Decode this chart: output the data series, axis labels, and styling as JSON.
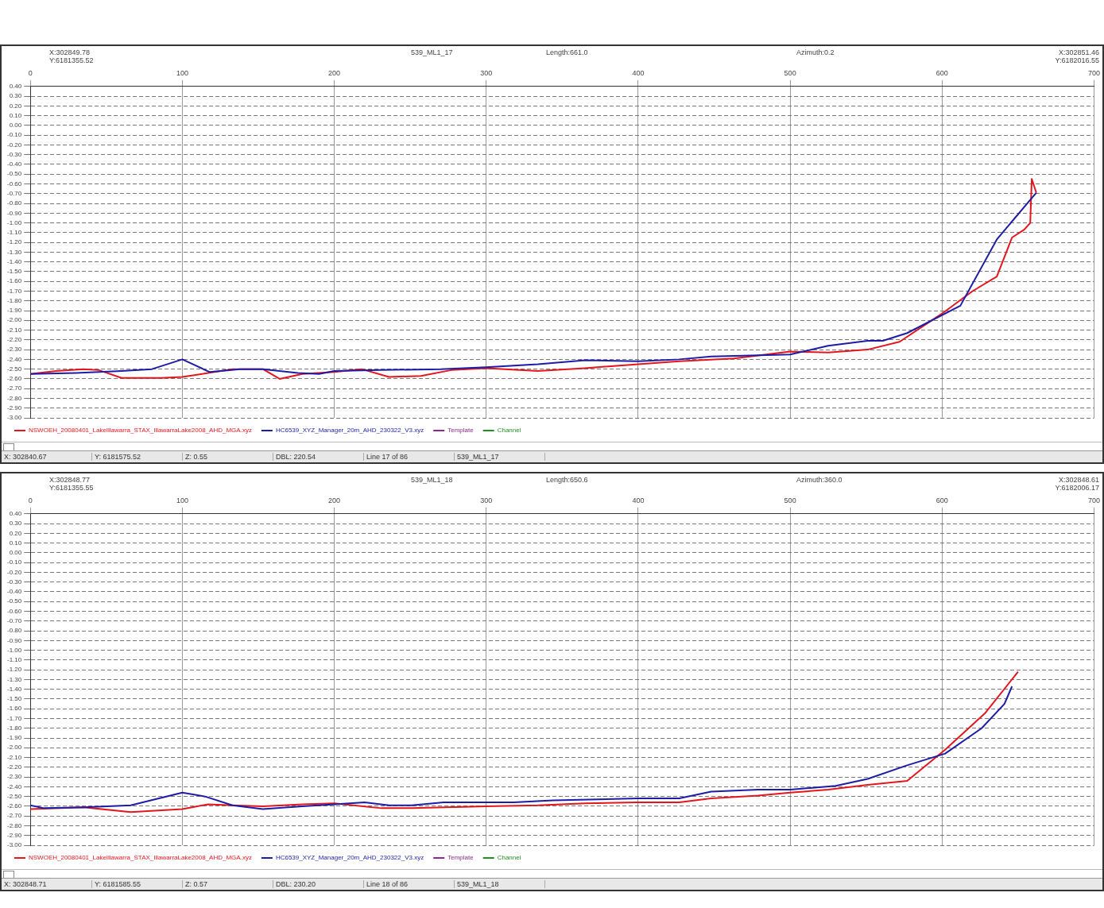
{
  "chart_data": [
    {
      "type": "line",
      "title": "539_ML1_17",
      "annotations": [
        "X:302849.78\nY:6181355.52",
        "Length:661.0",
        "Azimuth:0.2",
        "X:302851.46\nY:6182016.55",
        "X: 302840.67",
        "Y: 6181575.52",
        "Z: 0.55",
        "DBL: 220.54",
        "Line 17 of 86",
        "539_ML1_17"
      ],
      "series": [
        {
          "name": "NSWOEH_20080401_LakeIllawarra_STAX_IllawarraLake2008_AHD_MGA.xyz",
          "color": "#e3161d",
          "x": [
            0,
            17,
            35,
            45,
            60,
            86,
            100,
            117,
            133,
            153,
            164,
            179,
            200,
            218,
            236,
            257,
            277,
            300,
            334,
            365,
            400,
            427,
            463,
            500,
            525,
            551,
            572,
            600,
            620,
            636,
            646,
            654,
            658,
            659,
            662
          ],
          "values": [
            -2.55,
            -2.52,
            -2.5,
            -2.51,
            -2.59,
            -2.59,
            -2.58,
            -2.54,
            -2.5,
            -2.5,
            -2.6,
            -2.55,
            -2.53,
            -2.5,
            -2.58,
            -2.57,
            -2.51,
            -2.49,
            -2.52,
            -2.49,
            -2.45,
            -2.42,
            -2.39,
            -2.32,
            -2.33,
            -2.3,
            -2.22,
            -1.93,
            -1.7,
            -1.55,
            -1.15,
            -1.07,
            -1.0,
            -0.55,
            -0.69
          ]
        },
        {
          "name": "HC6539_XYZ_Manager_20m_AHD_230322_V3.xyz",
          "color": "#1c1ca6",
          "x": [
            0,
            30,
            60,
            80,
            100,
            118,
            138,
            153,
            176,
            190,
            200,
            230,
            270,
            300,
            334,
            365,
            400,
            427,
            448,
            500,
            525,
            551,
            561,
            577,
            612,
            636,
            662
          ],
          "values": [
            -2.55,
            -2.54,
            -2.52,
            -2.5,
            -2.4,
            -2.53,
            -2.5,
            -2.5,
            -2.54,
            -2.55,
            -2.52,
            -2.51,
            -2.5,
            -2.48,
            -2.45,
            -2.41,
            -2.42,
            -2.4,
            -2.37,
            -2.35,
            -2.26,
            -2.21,
            -2.21,
            -2.13,
            -1.85,
            -1.17,
            -0.69
          ]
        },
        {
          "name": "Template",
          "color": "#8a2a8a"
        },
        {
          "name": "Channel",
          "color": "#1f8f1f"
        }
      ],
      "xlim": [
        0,
        700
      ],
      "xticks": [
        0,
        100,
        200,
        300,
        400,
        500,
        600,
        700
      ],
      "ylim": [
        -3.0,
        0.4
      ],
      "yticks": [
        {
          "value": 0.4,
          "label": "0.40"
        },
        {
          "value": 0.3,
          "label": "0.30"
        },
        {
          "value": 0.2,
          "label": "0.20"
        },
        {
          "value": 0.1,
          "label": "0.10"
        },
        {
          "value": 0,
          "label": "0.00"
        },
        {
          "value": -0.1,
          "label": "-0.10"
        },
        {
          "value": -0.2,
          "label": "-0.20"
        },
        {
          "value": -0.3,
          "label": "-0.30"
        },
        {
          "value": -0.4,
          "label": "-0.40"
        },
        {
          "value": -0.5,
          "label": "-0.50"
        },
        {
          "value": -0.6,
          "label": "-0.60"
        },
        {
          "value": -0.7,
          "label": "-0.70"
        },
        {
          "value": -0.8,
          "label": "-0.80"
        },
        {
          "value": -0.9,
          "label": "-0.90"
        },
        {
          "value": -1.0,
          "label": "-1.00"
        },
        {
          "value": -1.1,
          "label": "-1.10"
        },
        {
          "value": -1.2,
          "label": "-1.20"
        },
        {
          "value": -1.3,
          "label": "-1.30"
        },
        {
          "value": -1.4,
          "label": "-1.40"
        },
        {
          "value": -1.5,
          "label": "-1.50"
        },
        {
          "value": -1.6,
          "label": "-1.60"
        },
        {
          "value": -1.7,
          "label": "-1.70"
        },
        {
          "value": -1.8,
          "label": "-1.80"
        },
        {
          "value": -1.9,
          "label": "-1.90"
        },
        {
          "value": -2.0,
          "label": "-2.00"
        },
        {
          "value": -2.1,
          "label": "-2.10"
        },
        {
          "value": -2.2,
          "label": "-2.20"
        },
        {
          "value": -2.3,
          "label": "-2.30"
        },
        {
          "value": -2.4,
          "label": "-2.40"
        },
        {
          "value": -2.5,
          "label": "-2.50"
        },
        {
          "value": -2.6,
          "label": "-2.60"
        },
        {
          "value": -2.7,
          "label": "-2.70"
        },
        {
          "value": -2.8,
          "label": "-2.80"
        },
        {
          "value": -2.9,
          "label": "-2.90"
        },
        {
          "value": -3.0,
          "label": "-3.00"
        }
      ],
      "grid": true,
      "legend": "bottom"
    },
    {
      "type": "line",
      "title": "539_ML1_18",
      "annotations": [
        "X:302848.77\nY:6181355.55",
        "Length:650.6",
        "Azimuth:360.0",
        "X:302848.61\nY:6182006.17",
        "X: 302848.71",
        "Y: 6181585.55",
        "Z: 0.57",
        "DBL: 230.20",
        "Line 18 of 86",
        "539_ML1_18"
      ],
      "series": [
        {
          "name": "NSWOEH_20080401_LakeIllawarra_STAX_IllawarraLake2008_AHD_MGA.xyz",
          "color": "#e3161d",
          "x": [
            0,
            35,
            66,
            100,
            117,
            133,
            153,
            179,
            200,
            231,
            251,
            300,
            334,
            365,
            400,
            427,
            448,
            479,
            500,
            525,
            551,
            577,
            602,
            628,
            650
          ],
          "values": [
            -2.63,
            -2.61,
            -2.66,
            -2.63,
            -2.58,
            -2.59,
            -2.6,
            -2.58,
            -2.57,
            -2.62,
            -2.62,
            -2.6,
            -2.59,
            -2.57,
            -2.56,
            -2.56,
            -2.52,
            -2.49,
            -2.46,
            -2.43,
            -2.38,
            -2.34,
            -2.02,
            -1.65,
            -1.22
          ]
        },
        {
          "name": "HC6539_XYZ_Manager_20m_AHD_230322_V3.xyz",
          "color": "#1c1ca6",
          "x": [
            0,
            9,
            35,
            66,
            100,
            115,
            133,
            153,
            179,
            200,
            220,
            236,
            251,
            272,
            300,
            318,
            344,
            400,
            427,
            448,
            479,
            500,
            530,
            551,
            577,
            602,
            626,
            641,
            646
          ],
          "values": [
            -2.59,
            -2.62,
            -2.61,
            -2.59,
            -2.46,
            -2.5,
            -2.59,
            -2.63,
            -2.6,
            -2.58,
            -2.56,
            -2.59,
            -2.59,
            -2.56,
            -2.56,
            -2.56,
            -2.54,
            -2.52,
            -2.52,
            -2.45,
            -2.43,
            -2.43,
            -2.39,
            -2.32,
            -2.18,
            -2.06,
            -1.8,
            -1.55,
            -1.37
          ]
        },
        {
          "name": "Template",
          "color": "#8a2a8a"
        },
        {
          "name": "Channel",
          "color": "#1f8f1f"
        }
      ],
      "xlim": [
        0,
        700
      ],
      "xticks": [
        0,
        100,
        200,
        300,
        400,
        500,
        600,
        700
      ],
      "ylim": [
        -3.0,
        0.4
      ],
      "yticks": [
        {
          "value": 0.4,
          "label": "0.40"
        },
        {
          "value": 0.3,
          "label": "0.30"
        },
        {
          "value": 0.2,
          "label": "0.20"
        },
        {
          "value": 0.1,
          "label": "0.10"
        },
        {
          "value": 0,
          "label": "0.00"
        },
        {
          "value": -0.1,
          "label": "-0.10"
        },
        {
          "value": -0.2,
          "label": "-0.20"
        },
        {
          "value": -0.3,
          "label": "-0.30"
        },
        {
          "value": -0.4,
          "label": "-0.40"
        },
        {
          "value": -0.5,
          "label": "-0.50"
        },
        {
          "value": -0.6,
          "label": "-0.60"
        },
        {
          "value": -0.7,
          "label": "-0.70"
        },
        {
          "value": -0.8,
          "label": "-0.80"
        },
        {
          "value": -0.9,
          "label": "-0.90"
        },
        {
          "value": -1.0,
          "label": "-1.00"
        },
        {
          "value": -1.1,
          "label": "-1.10"
        },
        {
          "value": -1.2,
          "label": "-1.20"
        },
        {
          "value": -1.3,
          "label": "-1.30"
        },
        {
          "value": -1.4,
          "label": "-1.40"
        },
        {
          "value": -1.5,
          "label": "-1.50"
        },
        {
          "value": -1.6,
          "label": "-1.60"
        },
        {
          "value": -1.7,
          "label": "-1.70"
        },
        {
          "value": -1.8,
          "label": "-1.80"
        },
        {
          "value": -1.9,
          "label": "-1.90"
        },
        {
          "value": -2.0,
          "label": "-2.00"
        },
        {
          "value": -2.1,
          "label": "-2.10"
        },
        {
          "value": -2.2,
          "label": "-2.20"
        },
        {
          "value": -2.3,
          "label": "-2.30"
        },
        {
          "value": -2.4,
          "label": "-2.40"
        },
        {
          "value": -2.5,
          "label": "-2.50"
        },
        {
          "value": -2.6,
          "label": "-2.60"
        },
        {
          "value": -2.7,
          "label": "-2.70"
        },
        {
          "value": -2.8,
          "label": "-2.80"
        },
        {
          "value": -2.9,
          "label": "-2.90"
        },
        {
          "value": -3.0,
          "label": "-3.00"
        }
      ],
      "grid": true,
      "legend": "bottom"
    }
  ]
}
